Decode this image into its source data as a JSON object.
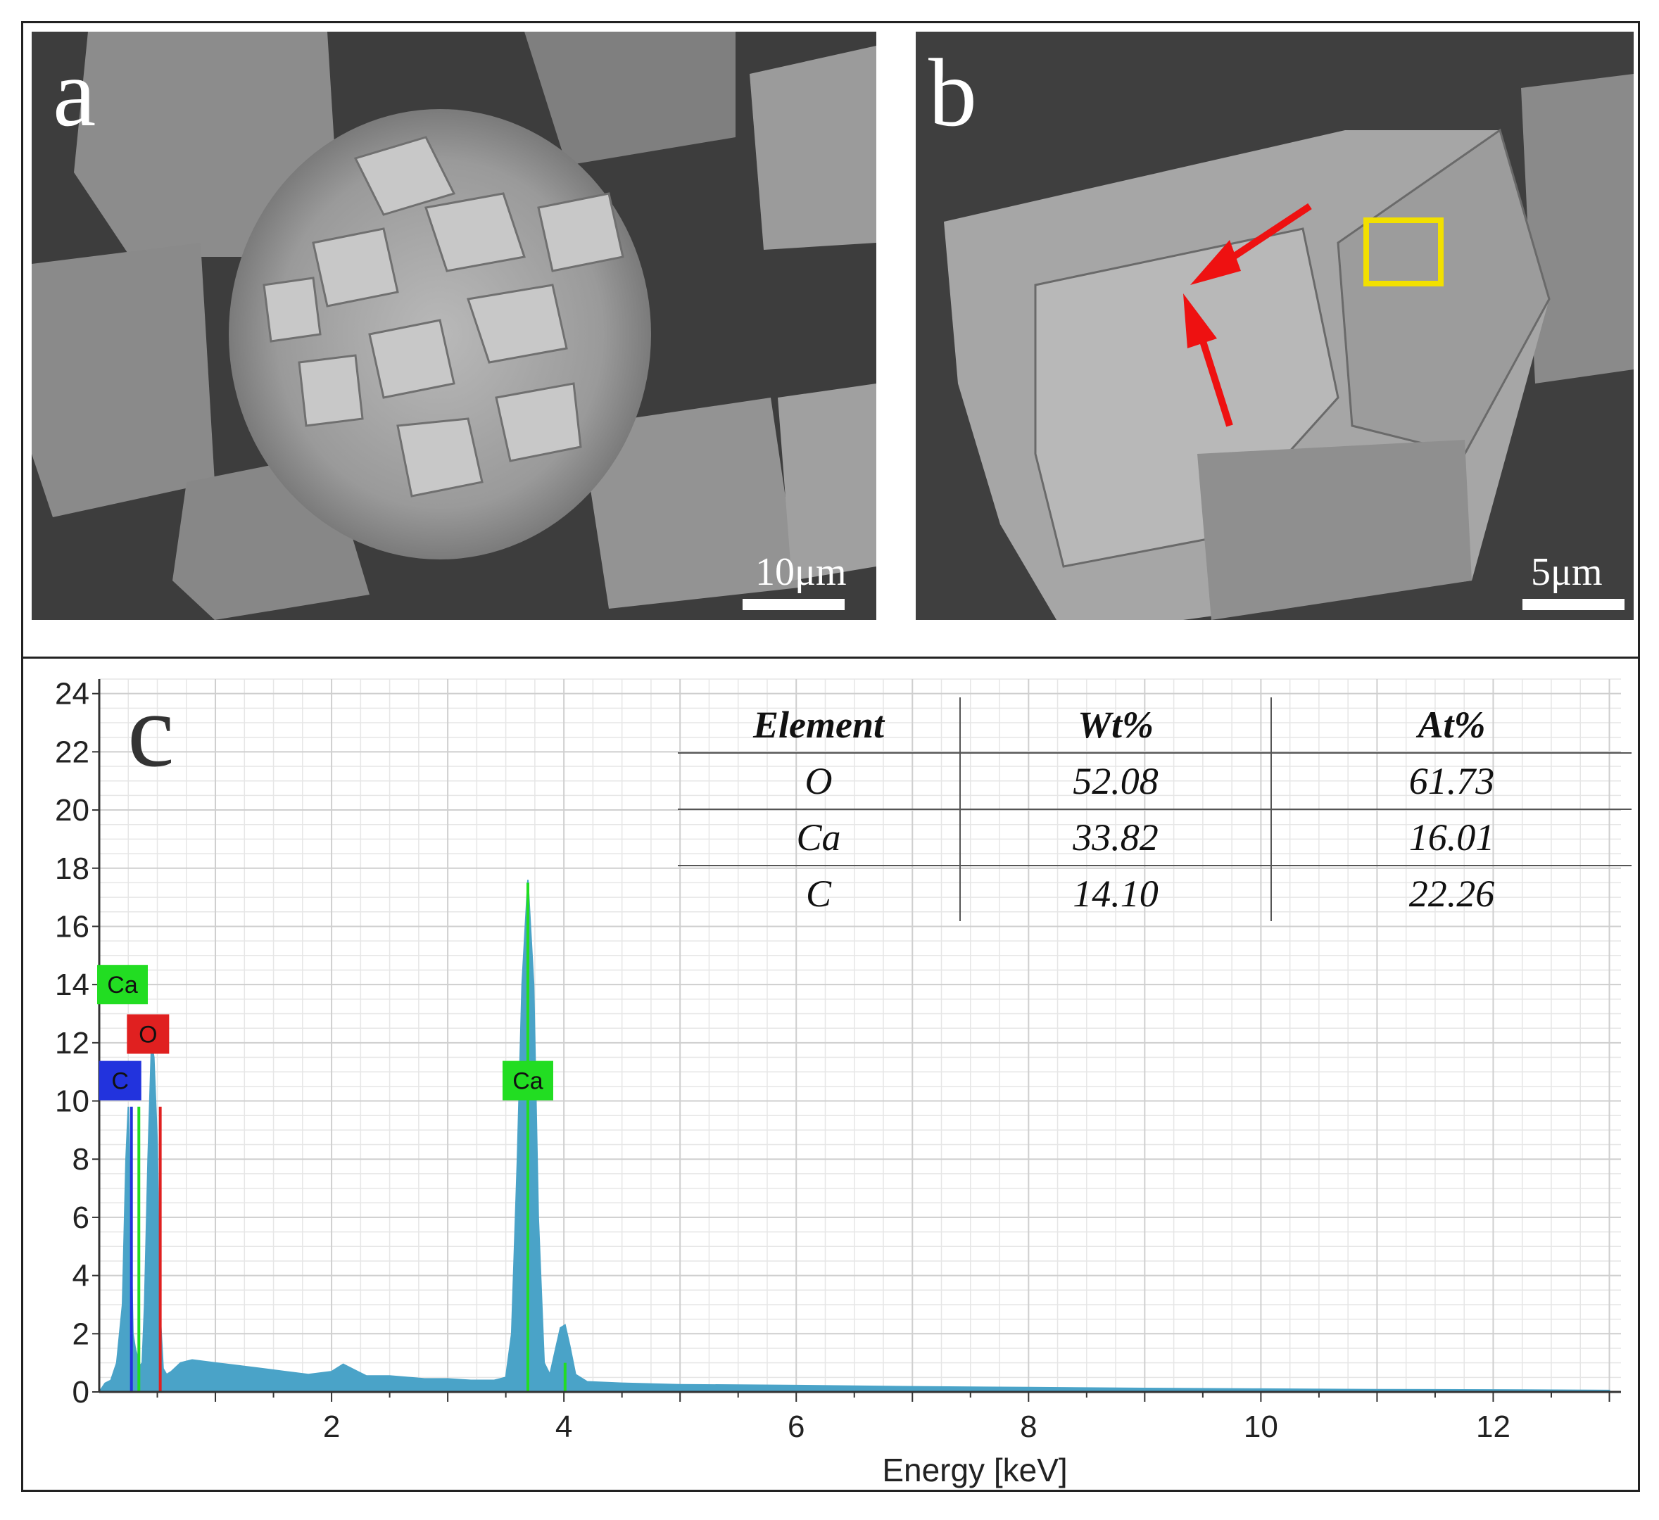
{
  "panels": {
    "a": {
      "letter": "a",
      "scale_label": "10μm"
    },
    "b": {
      "letter": "b",
      "scale_label": "5μm"
    },
    "c": {
      "letter": "c"
    }
  },
  "colors": {
    "spectrum": "#4aa3c8",
    "ca_line": "#22dd22",
    "o_line": "#e02020",
    "c_line": "#2233dd",
    "arrow": "#ee1111",
    "roi_box": "#f2e000"
  },
  "table": {
    "headers": [
      "Element",
      "Wt%",
      "At%"
    ],
    "rows": [
      [
        "O",
        "52.08",
        "61.73"
      ],
      [
        "Ca",
        "33.82",
        "16.01"
      ],
      [
        "C",
        "14.10",
        "22.26"
      ]
    ]
  },
  "chart_data": {
    "type": "area",
    "xlabel": "Energy [keV]",
    "ylabel": "",
    "xlim": [
      0,
      13.1
    ],
    "ylim": [
      0,
      24.5
    ],
    "xticks": [
      2,
      4,
      6,
      8,
      10,
      12
    ],
    "yticks": [
      0,
      2,
      4,
      6,
      8,
      10,
      12,
      14,
      16,
      18,
      20,
      22,
      24
    ],
    "grid": true,
    "x": [
      0.0,
      0.05,
      0.1,
      0.15,
      0.2,
      0.23,
      0.25,
      0.27,
      0.29,
      0.31,
      0.33,
      0.35,
      0.37,
      0.39,
      0.42,
      0.45,
      0.47,
      0.5,
      0.52,
      0.55,
      0.58,
      0.62,
      0.7,
      0.8,
      1.0,
      1.2,
      1.4,
      1.6,
      1.8,
      2.0,
      2.1,
      2.2,
      2.3,
      2.5,
      2.8,
      3.0,
      3.2,
      3.4,
      3.5,
      3.55,
      3.6,
      3.64,
      3.69,
      3.74,
      3.78,
      3.83,
      3.88,
      3.93,
      3.97,
      4.01,
      4.05,
      4.1,
      4.2,
      4.5,
      5.0,
      6.0,
      7.0,
      8.0,
      9.0,
      10.0,
      11.0,
      12.0,
      13.0
    ],
    "series": [
      {
        "values": [
          0.0,
          0.3,
          0.4,
          1.0,
          3.0,
          8.0,
          9.8,
          6.0,
          2.0,
          1.5,
          1.2,
          0.9,
          1.0,
          3.0,
          8.0,
          12.0,
          11.5,
          8.5,
          3.0,
          0.8,
          0.6,
          0.7,
          1.0,
          1.1,
          1.0,
          0.9,
          0.8,
          0.7,
          0.6,
          0.7,
          0.95,
          0.75,
          0.55,
          0.55,
          0.45,
          0.45,
          0.4,
          0.4,
          0.5,
          2.0,
          8.0,
          14.0,
          17.6,
          14.0,
          6.0,
          1.0,
          0.6,
          1.5,
          2.2,
          2.3,
          1.6,
          0.6,
          0.35,
          0.3,
          0.25,
          0.22,
          0.18,
          0.15,
          0.12,
          0.1,
          0.08,
          0.07,
          0.05
        ]
      }
    ],
    "peak_markers": [
      {
        "element": "C",
        "energy": 0.277,
        "height": 9.8
      },
      {
        "element": "Ca",
        "energy": 0.341,
        "height": 9.8
      },
      {
        "element": "O",
        "energy": 0.525,
        "height": 9.8
      },
      {
        "element": "Ca",
        "energy": 3.69,
        "height": 17.5
      },
      {
        "element": "Ca",
        "energy": 4.01,
        "height": 1.0
      }
    ],
    "peak_labels": [
      {
        "text": "Ca",
        "energy": 0.2,
        "y": 14.0,
        "color": "#22dd22"
      },
      {
        "text": "O",
        "energy": 0.42,
        "y": 12.3,
        "color": "#e02020"
      },
      {
        "text": "C",
        "energy": 0.18,
        "y": 10.7,
        "color": "#2233dd"
      },
      {
        "text": "Ca",
        "energy": 3.69,
        "y": 10.7,
        "color": "#22dd22"
      }
    ]
  }
}
